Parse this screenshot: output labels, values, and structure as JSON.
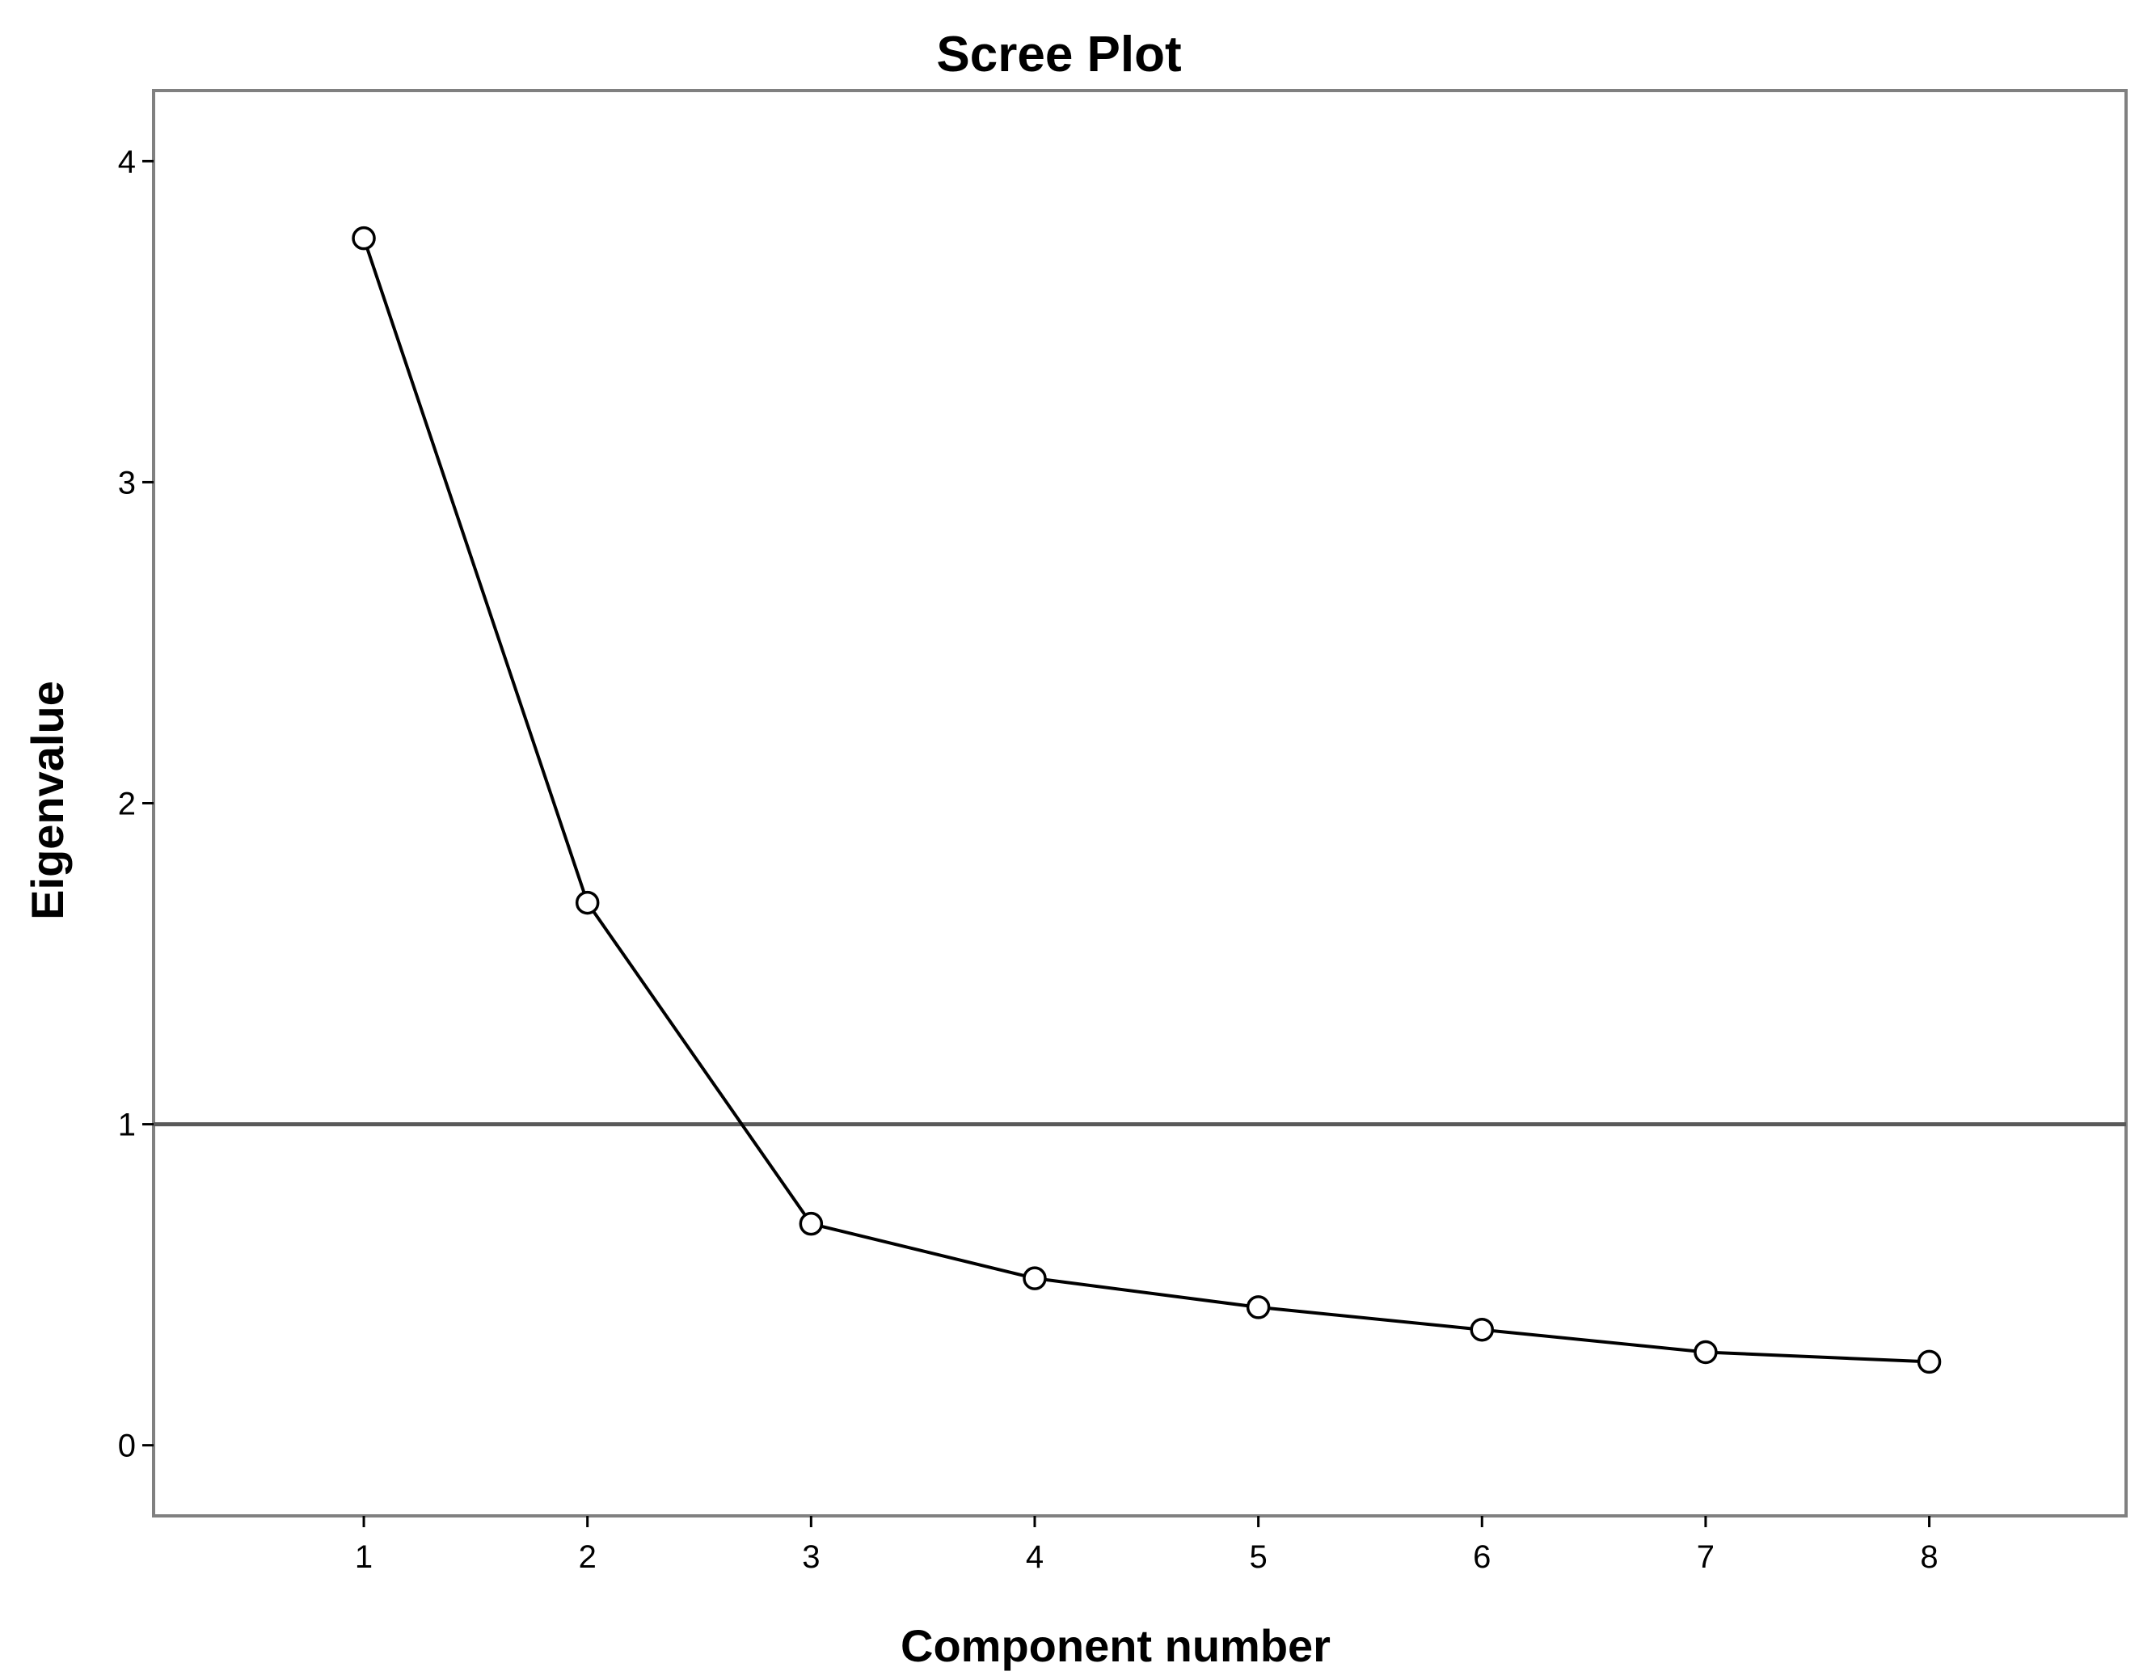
{
  "chart_data": {
    "type": "line",
    "title": "Scree Plot",
    "xlabel": "Component number",
    "ylabel": "Eigenvalue",
    "x": [
      1,
      2,
      3,
      4,
      5,
      6,
      7,
      8
    ],
    "series": [
      {
        "values": [
          3.76,
          1.69,
          0.69,
          0.52,
          0.43,
          0.36,
          0.29,
          0.26
        ]
      }
    ],
    "xticks": [
      "1",
      "2",
      "3",
      "4",
      "5",
      "6",
      "7",
      "8"
    ],
    "yticks": [
      "0",
      "1",
      "2",
      "3",
      "4"
    ],
    "xlim": [
      0.06,
      8.88
    ],
    "ylim": [
      -0.22,
      4.22
    ],
    "reference_line": {
      "y": 1
    },
    "marker": "open-circle",
    "grid": false,
    "colors": {
      "line": "#000000",
      "reference": "#595959",
      "frame": "#808080"
    }
  }
}
